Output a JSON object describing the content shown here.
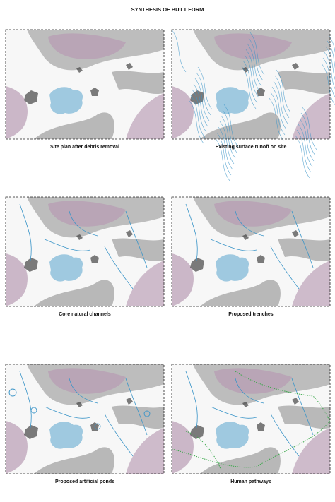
{
  "title": "SYNTHESIS OF BUILT FORM",
  "panels": [
    {
      "caption": "Site  plan after debris removal"
    },
    {
      "caption": "Existing surface runoff on site"
    },
    {
      "caption": "Core natural channels"
    },
    {
      "caption": "Proposed trenches"
    },
    {
      "caption": "Proposed artificial ponds"
    },
    {
      "caption": "Human pathways"
    }
  ]
}
